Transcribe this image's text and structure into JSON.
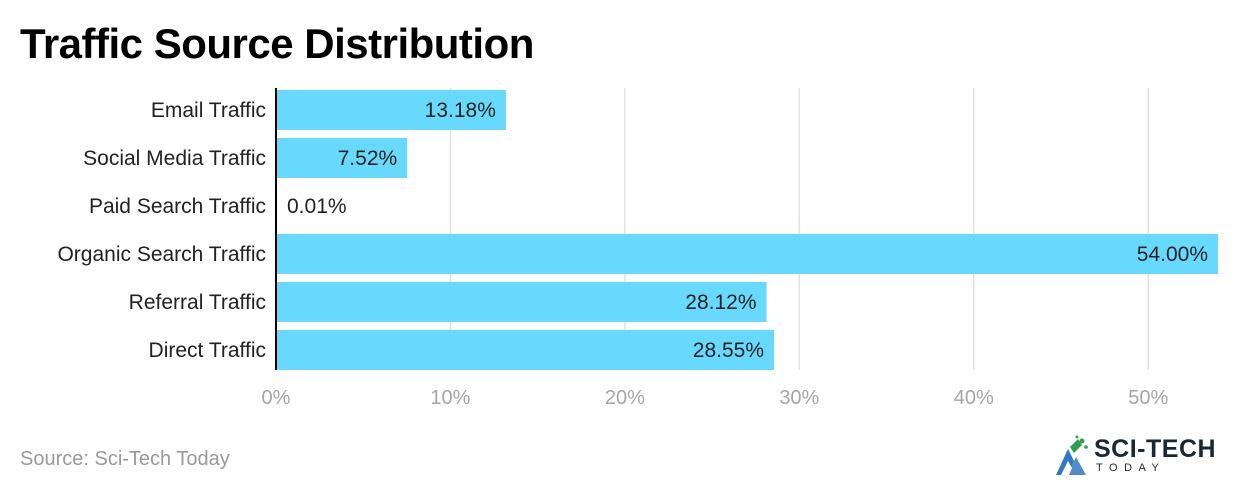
{
  "header": {
    "title": "Traffic Source Distribution"
  },
  "footer": {
    "source": "Source: Sci-Tech Today"
  },
  "logo": {
    "name": "SCI-TECH",
    "tagline": "TODAY",
    "colors": {
      "green": "#2e9e4f",
      "blue": "#2f78c4",
      "dark": "#1b2733"
    }
  },
  "chart_data": {
    "type": "bar",
    "orientation": "horizontal",
    "categories": [
      "Email Traffic",
      "Social Media Traffic",
      "Paid Search Traffic",
      "Organic Search Traffic",
      "Referral Traffic",
      "Direct Traffic"
    ],
    "values": [
      13.18,
      7.52,
      0.01,
      54.0,
      28.12,
      28.55
    ],
    "value_labels": [
      "13.18%",
      "7.52%",
      "0.01%",
      "54.00%",
      "28.12%",
      "28.55%"
    ],
    "x_ticks": [
      "0%",
      "10%",
      "20%",
      "30%",
      "40%",
      "50%"
    ],
    "xlim": [
      0,
      54
    ],
    "grid": true,
    "bar_color": "#66d9fc",
    "axis_line_color": "#000000",
    "grid_color": "#e3e3e3",
    "tick_color": "#a6a6a6"
  }
}
